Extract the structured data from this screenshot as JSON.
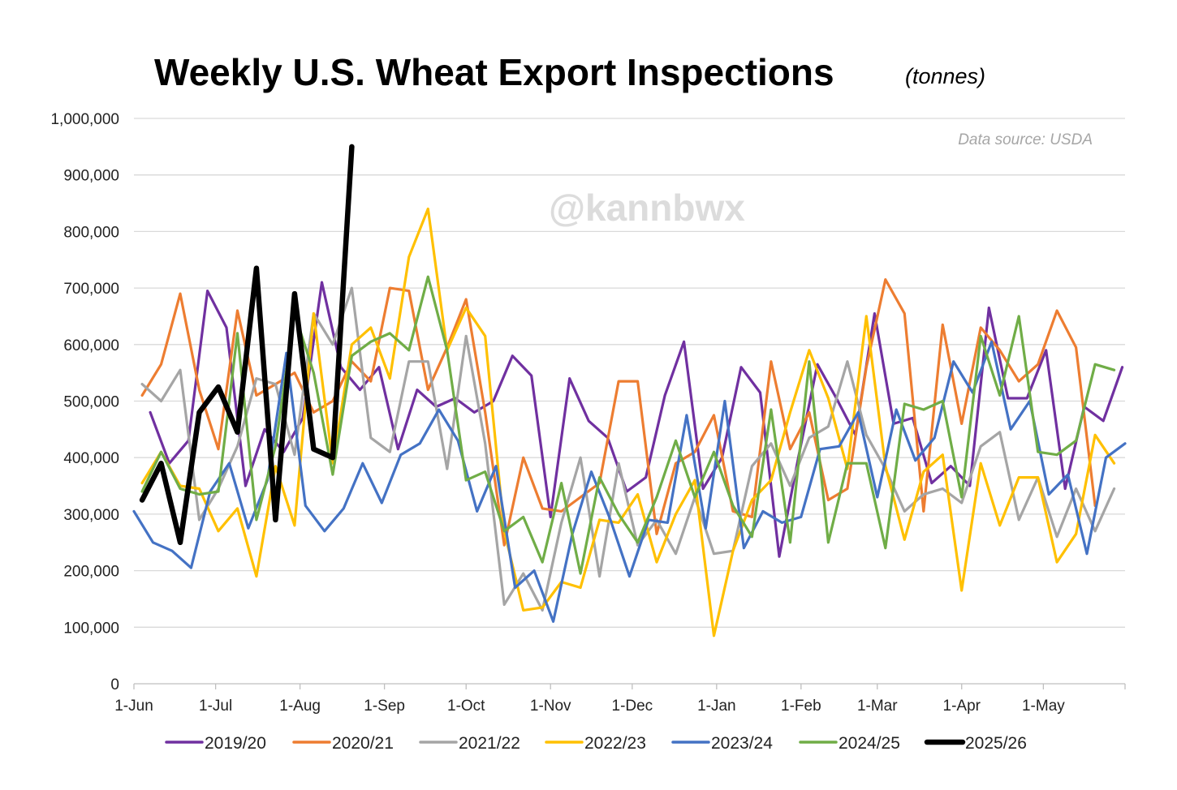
{
  "chart_data": {
    "type": "line",
    "title": "Weekly U.S. Wheat Export Inspections",
    "subtitle": "(tonnes)",
    "source_note": "Data source: USDA",
    "watermark": "@kannbwx",
    "xlabel": "",
    "ylabel": "",
    "ylim": [
      0,
      1000000
    ],
    "y_ticks": [
      0,
      100000,
      200000,
      300000,
      400000,
      500000,
      600000,
      700000,
      800000,
      900000,
      1000000
    ],
    "y_tick_labels": [
      "0",
      "100,000",
      "200,000",
      "300,000",
      "400,000",
      "500,000",
      "600,000",
      "700,000",
      "800,000",
      "900,000",
      "1,000,000"
    ],
    "x_tick_labels": [
      "1-Jun",
      "1-Jul",
      "1-Aug",
      "1-Sep",
      "1-Oct",
      "1-Nov",
      "1-Dec",
      "1-Jan",
      "1-Feb",
      "1-Mar",
      "1-Apr",
      "1-May"
    ],
    "x_tick_days": [
      0,
      30,
      61,
      92,
      122,
      153,
      183,
      214,
      245,
      273,
      304,
      334
    ],
    "x_range_days": [
      0,
      364
    ],
    "x_unit": "days since 1-Jun",
    "week_step_days": 7,
    "gridlines": "horizontal",
    "legend_position": "bottom",
    "series": [
      {
        "name": "2019/20",
        "color": "#7030a0",
        "start_day": 6,
        "values": [
          480000,
          390000,
          430000,
          695000,
          630000,
          350000,
          450000,
          410000,
          470000,
          710000,
          560000,
          520000,
          560000,
          415000,
          520000,
          490000,
          505000,
          480000,
          500000,
          580000,
          545000,
          295000,
          540000,
          465000,
          435000,
          340000,
          365000,
          510000,
          605000,
          345000,
          400000,
          560000,
          515000,
          225000,
          400000,
          565000,
          505000,
          440000,
          655000,
          460000,
          470000,
          355000,
          385000,
          350000,
          665000,
          505000,
          505000,
          590000,
          345000,
          490000,
          465000,
          560000
        ]
      },
      {
        "name": "2020/21",
        "color": "#ed7d31",
        "start_day": 3,
        "values": [
          510000,
          565000,
          690000,
          520000,
          415000,
          660000,
          510000,
          530000,
          550000,
          480000,
          500000,
          570000,
          535000,
          700000,
          695000,
          520000,
          595000,
          680000,
          480000,
          245000,
          400000,
          310000,
          305000,
          330000,
          355000,
          535000,
          535000,
          265000,
          390000,
          410000,
          475000,
          305000,
          295000,
          570000,
          415000,
          480000,
          325000,
          345000,
          560000,
          715000,
          655000,
          305000,
          635000,
          460000,
          630000,
          590000,
          535000,
          565000,
          660000,
          595000,
          315000
        ]
      },
      {
        "name": "2021/22",
        "color": "#a5a5a5",
        "start_day": 3,
        "values": [
          530000,
          500000,
          555000,
          290000,
          345000,
          420000,
          540000,
          530000,
          405000,
          655000,
          600000,
          700000,
          435000,
          410000,
          570000,
          570000,
          380000,
          615000,
          425000,
          140000,
          195000,
          130000,
          285000,
          400000,
          190000,
          390000,
          245000,
          290000,
          230000,
          330000,
          230000,
          235000,
          385000,
          425000,
          350000,
          435000,
          455000,
          570000,
          440000,
          380000,
          305000,
          335000,
          345000,
          320000,
          420000,
          445000,
          290000,
          365000,
          260000,
          345000,
          270000,
          345000
        ]
      },
      {
        "name": "2022/23",
        "color": "#ffc000",
        "start_day": 3,
        "values": [
          355000,
          410000,
          350000,
          345000,
          270000,
          310000,
          190000,
          385000,
          280000,
          655000,
          390000,
          600000,
          630000,
          540000,
          755000,
          840000,
          590000,
          665000,
          615000,
          270000,
          130000,
          135000,
          180000,
          170000,
          290000,
          285000,
          335000,
          215000,
          300000,
          360000,
          85000,
          235000,
          325000,
          360000,
          480000,
          590000,
          505000,
          380000,
          650000,
          385000,
          255000,
          375000,
          405000,
          165000,
          390000,
          280000,
          365000,
          365000,
          215000,
          265000,
          440000,
          390000
        ]
      },
      {
        "name": "2023/24",
        "color": "#4472c4",
        "start_day": 0,
        "values": [
          305000,
          250000,
          235000,
          205000,
          340000,
          390000,
          275000,
          360000,
          585000,
          315000,
          270000,
          310000,
          390000,
          320000,
          405000,
          425000,
          485000,
          430000,
          305000,
          385000,
          170000,
          200000,
          110000,
          265000,
          375000,
          290000,
          190000,
          290000,
          285000,
          475000,
          275000,
          500000,
          240000,
          305000,
          285000,
          295000,
          415000,
          420000,
          480000,
          330000,
          485000,
          395000,
          435000,
          570000,
          515000,
          605000,
          450000,
          500000,
          335000,
          370000,
          230000,
          400000,
          425000
        ]
      },
      {
        "name": "2024/25",
        "color": "#70ad47",
        "start_day": 3,
        "values": [
          340000,
          410000,
          345000,
          335000,
          340000,
          620000,
          290000,
          420000,
          655000,
          550000,
          370000,
          580000,
          605000,
          620000,
          590000,
          720000,
          590000,
          360000,
          375000,
          270000,
          295000,
          215000,
          355000,
          195000,
          365000,
          300000,
          250000,
          330000,
          430000,
          330000,
          410000,
          315000,
          260000,
          485000,
          250000,
          570000,
          250000,
          390000,
          390000,
          240000,
          495000,
          485000,
          500000,
          330000,
          615000,
          510000,
          650000,
          410000,
          405000,
          430000,
          565000,
          555000
        ]
      },
      {
        "name": "2025/26",
        "color": "#000000",
        "start_day": 3,
        "line_width": 6.5,
        "values": [
          325000,
          390000,
          250000,
          480000,
          525000,
          445000,
          735000,
          290000,
          690000,
          415000,
          400000,
          950000
        ]
      }
    ]
  }
}
